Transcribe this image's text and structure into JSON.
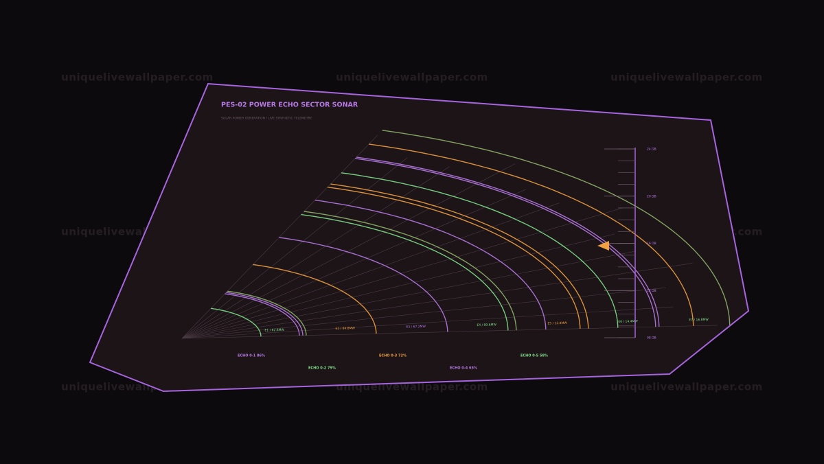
{
  "watermark": "uniquelivewallpaper.com",
  "panel": {
    "title": "PES-02  POWER ECHO SECTOR SONAR",
    "subtitle": "SOLAR POWER GENERATION / LIVE SYNTHETIC TELEMETRY"
  },
  "sector": {
    "labels": [
      {
        "text": "E1 / 82.6MW",
        "color": "#7ee08a"
      },
      {
        "text": "E2 / 84.8MW",
        "color": "#f0a040"
      },
      {
        "text": "E3 / 67.2MW",
        "color": "#b77ae6"
      },
      {
        "text": "E4 / 89.6MW",
        "color": "#7ee08a"
      },
      {
        "text": "E5 / 12.8MW",
        "color": "#f0a040"
      },
      {
        "text": "E6 / 14.4MW",
        "color": "#7ee08a"
      },
      {
        "text": "E7 / 16.8MW",
        "color": "#7ee08a"
      }
    ]
  },
  "legend": [
    {
      "text": "ECHO 0-1  86%",
      "color": "#b77ae6"
    },
    {
      "text": "ECHO 0-2  79%",
      "color": "#7ee08a"
    },
    {
      "text": "ECHO 0-3  72%",
      "color": "#f0a040"
    },
    {
      "text": "ECHO 0-4  65%",
      "color": "#b77ae6"
    },
    {
      "text": "ECHO 0-5  58%",
      "color": "#7ee08a"
    }
  ],
  "gauge": {
    "ylim": [
      8,
      24
    ],
    "yticks": [
      {
        "value": 24,
        "label": "24 DB"
      },
      {
        "value": 20,
        "label": "20 DB"
      },
      {
        "value": 16,
        "label": "16 DB"
      },
      {
        "value": 12,
        "label": "12 DB"
      },
      {
        "value": 8,
        "label": "08 DB"
      }
    ],
    "marker": 15.8,
    "marker_color": "#f0a040"
  }
}
